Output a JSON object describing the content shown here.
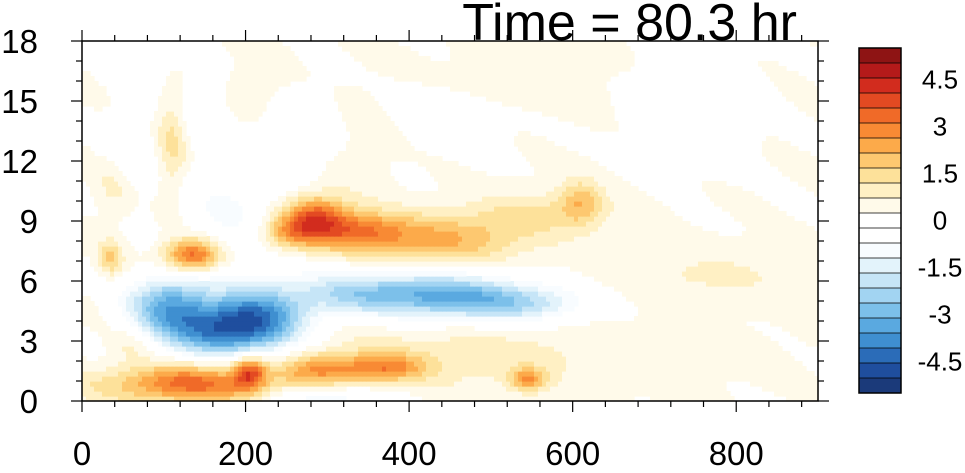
{
  "chart_data": {
    "type": "heatmap",
    "title": "Time = 80.3 hr",
    "xlabel": "",
    "ylabel": "",
    "xlim": [
      0,
      900
    ],
    "ylim": [
      0,
      18
    ],
    "x_ticks": [
      0,
      200,
      400,
      600,
      800
    ],
    "y_ticks": [
      0,
      3,
      6,
      9,
      12,
      15,
      18
    ],
    "grid": false,
    "colorbar": {
      "position": "right",
      "levels": [
        -5.5,
        -5,
        -4.5,
        -4,
        -3.5,
        -3,
        -2.5,
        -2,
        -1.5,
        -1,
        -0.5,
        0,
        0.5,
        1,
        1.5,
        2,
        2.5,
        3,
        3.5,
        4,
        4.5,
        5,
        5.5
      ],
      "labels": [
        "4.5",
        "3",
        "1.5",
        "0",
        "-1.5",
        "-3",
        "-4.5"
      ],
      "label_values": [
        4.5,
        3,
        1.5,
        0,
        -1.5,
        -3,
        -4.5
      ],
      "colors": [
        "#1b3a7a",
        "#1f4e9e",
        "#2b6cb8",
        "#3f8fd0",
        "#5aa9e0",
        "#7cc0ea",
        "#a2d4f2",
        "#c6e5f7",
        "#e3f3fb",
        "#f8fcff",
        "#ffffff",
        "#ffffff",
        "#fffaea",
        "#fff0c4",
        "#fde19a",
        "#fdc870",
        "#fcaa4a",
        "#f88a34",
        "#f06a28",
        "#e34a22",
        "#d22c1e",
        "#b41a1a",
        "#8e1414"
      ]
    },
    "features": [
      {
        "x": 130,
        "y": 0.9,
        "value": 3.2,
        "sx": 70,
        "sy": 0.7
      },
      {
        "x": 205,
        "y": 1.5,
        "value": 3.0,
        "sx": 14,
        "sy": 0.6
      },
      {
        "x": 290,
        "y": 1.6,
        "value": 2.0,
        "sx": 35,
        "sy": 0.6
      },
      {
        "x": 370,
        "y": 1.7,
        "value": 2.3,
        "sx": 35,
        "sy": 0.5
      },
      {
        "x": 545,
        "y": 1.1,
        "value": 2.2,
        "sx": 16,
        "sy": 0.4
      },
      {
        "x": 460,
        "y": 2.3,
        "value": 0.8,
        "sx": 160,
        "sy": 1.2
      },
      {
        "x": 300,
        "y": 0.1,
        "value": -1.5,
        "sx": 50,
        "sy": 0.5
      },
      {
        "x": 170,
        "y": 3.6,
        "value": -4.2,
        "sx": 55,
        "sy": 1.0
      },
      {
        "x": 105,
        "y": 5.0,
        "value": -3.0,
        "sx": 35,
        "sy": 1.0
      },
      {
        "x": 220,
        "y": 4.4,
        "value": -2.5,
        "sx": 40,
        "sy": 1.2
      },
      {
        "x": 330,
        "y": 5.4,
        "value": -2.2,
        "sx": 55,
        "sy": 0.8
      },
      {
        "x": 440,
        "y": 5.3,
        "value": -3.2,
        "sx": 60,
        "sy": 0.8
      },
      {
        "x": 540,
        "y": 4.9,
        "value": -2.2,
        "sx": 55,
        "sy": 0.7
      },
      {
        "x": 180,
        "y": 9.5,
        "value": -1.0,
        "sx": 45,
        "sy": 2.0
      },
      {
        "x": 60,
        "y": 12.5,
        "value": -0.8,
        "sx": 25,
        "sy": 2.0
      },
      {
        "x": 150,
        "y": 15.0,
        "value": -1.0,
        "sx": 25,
        "sy": 1.5
      },
      {
        "x": 80,
        "y": 17.0,
        "value": -1.0,
        "sx": 25,
        "sy": 0.8
      },
      {
        "x": 310,
        "y": 14.0,
        "value": -0.7,
        "sx": 45,
        "sy": 1.8
      },
      {
        "x": 250,
        "y": 13.0,
        "value": -0.6,
        "sx": 45,
        "sy": 1.5
      },
      {
        "x": 450,
        "y": 15.0,
        "value": -0.6,
        "sx": 60,
        "sy": 1.5
      },
      {
        "x": 740,
        "y": 14.8,
        "value": -0.6,
        "sx": 45,
        "sy": 1.8
      },
      {
        "x": 135,
        "y": 7.3,
        "value": 3.6,
        "sx": 25,
        "sy": 0.6
      },
      {
        "x": 35,
        "y": 7.1,
        "value": 1.5,
        "sx": 10,
        "sy": 0.6
      },
      {
        "x": 285,
        "y": 9.2,
        "value": 3.2,
        "sx": 28,
        "sy": 0.8
      },
      {
        "x": 340,
        "y": 8.5,
        "value": 2.4,
        "sx": 40,
        "sy": 0.7
      },
      {
        "x": 440,
        "y": 8.1,
        "value": 2.0,
        "sx": 70,
        "sy": 0.9
      },
      {
        "x": 560,
        "y": 9.4,
        "value": 1.0,
        "sx": 60,
        "sy": 0.8
      },
      {
        "x": 610,
        "y": 10.0,
        "value": 1.5,
        "sx": 18,
        "sy": 0.8
      },
      {
        "x": 250,
        "y": 8.4,
        "value": 1.8,
        "sx": 25,
        "sy": 0.6
      },
      {
        "x": 770,
        "y": 6.3,
        "value": 0.6,
        "sx": 90,
        "sy": 0.9
      },
      {
        "x": 110,
        "y": 13.0,
        "value": 1.3,
        "sx": 14,
        "sy": 2.2
      },
      {
        "x": 330,
        "y": 13.5,
        "value": 0.9,
        "sx": 35,
        "sy": 2.0
      },
      {
        "x": 200,
        "y": 15.5,
        "value": 0.7,
        "sx": 35,
        "sy": 1.2
      },
      {
        "x": 500,
        "y": 16.0,
        "value": 0.6,
        "sx": 80,
        "sy": 1.2
      },
      {
        "x": 40,
        "y": 10.5,
        "value": 0.8,
        "sx": 18,
        "sy": 1.3
      },
      {
        "x": 60,
        "y": 2.8,
        "value": 0.7,
        "sx": 20,
        "sy": 0.6
      }
    ]
  }
}
